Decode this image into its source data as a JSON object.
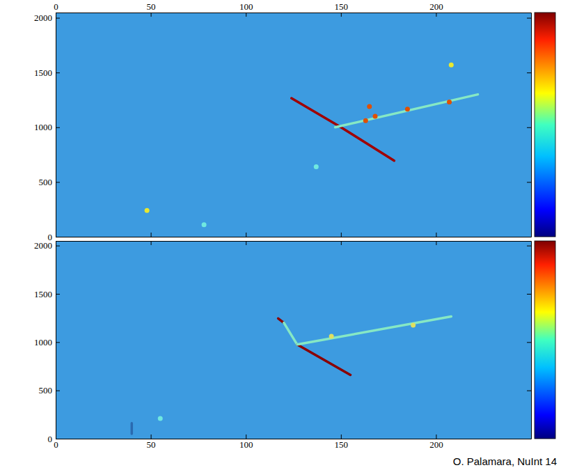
{
  "chart_data": [
    {
      "type": "line",
      "xlim": [
        0,
        250
      ],
      "ylim": [
        0,
        2048
      ],
      "xticks": [
        0,
        50,
        100,
        150,
        200
      ],
      "yticks": [
        0,
        500,
        1000,
        1500,
        2000
      ],
      "series": [
        {
          "type": "line",
          "color": "#a00000",
          "x": [
            124,
            150,
            178
          ],
          "values": [
            1265,
            1000,
            695
          ]
        },
        {
          "type": "line",
          "color": "#86e8c4",
          "x": [
            147,
            222
          ],
          "values": [
            1000,
            1300
          ]
        },
        {
          "type": "scatter",
          "marker": "circle",
          "color": "#e05000",
          "x": [
            163,
            165,
            168,
            185,
            207
          ],
          "values": [
            1060,
            1190,
            1100,
            1165,
            1230
          ]
        },
        {
          "type": "scatter",
          "marker": "circle",
          "color": "#e8e830",
          "x": [
            48,
            208
          ],
          "values": [
            240,
            1570
          ]
        },
        {
          "type": "scatter",
          "marker": "circle",
          "color": "#70e8e0",
          "x": [
            78,
            137
          ],
          "values": [
            110,
            640
          ]
        }
      ]
    },
    {
      "type": "line",
      "xlim": [
        0,
        250
      ],
      "ylim": [
        0,
        2048
      ],
      "xticks": [
        0,
        50,
        100,
        150,
        200
      ],
      "yticks": [
        0,
        500,
        1000,
        1500,
        2000
      ],
      "annotation": "O. Palamara, NuInt 14",
      "series": [
        {
          "type": "line",
          "color": "#8a0000",
          "x": [
            117,
            120
          ],
          "values": [
            1245,
            1200
          ]
        },
        {
          "type": "line",
          "color": "#86e8c4",
          "x": [
            120,
            127
          ],
          "values": [
            1200,
            975
          ]
        },
        {
          "type": "line",
          "color": "#8a0000",
          "x": [
            127,
            155
          ],
          "values": [
            975,
            660
          ]
        },
        {
          "type": "line",
          "color": "#86e8c4",
          "x": [
            127,
            208
          ],
          "values": [
            975,
            1265
          ]
        },
        {
          "type": "scatter",
          "marker": "circle",
          "color": "#e0e060",
          "x": [
            145,
            188
          ],
          "values": [
            1060,
            1175
          ]
        },
        {
          "type": "scatter",
          "marker": "circle",
          "color": "#70e8e0",
          "x": [
            55
          ],
          "values": [
            210
          ]
        },
        {
          "type": "line",
          "color": "#2a6ab0",
          "x": [
            40,
            40
          ],
          "values": [
            50,
            160
          ]
        }
      ]
    }
  ]
}
